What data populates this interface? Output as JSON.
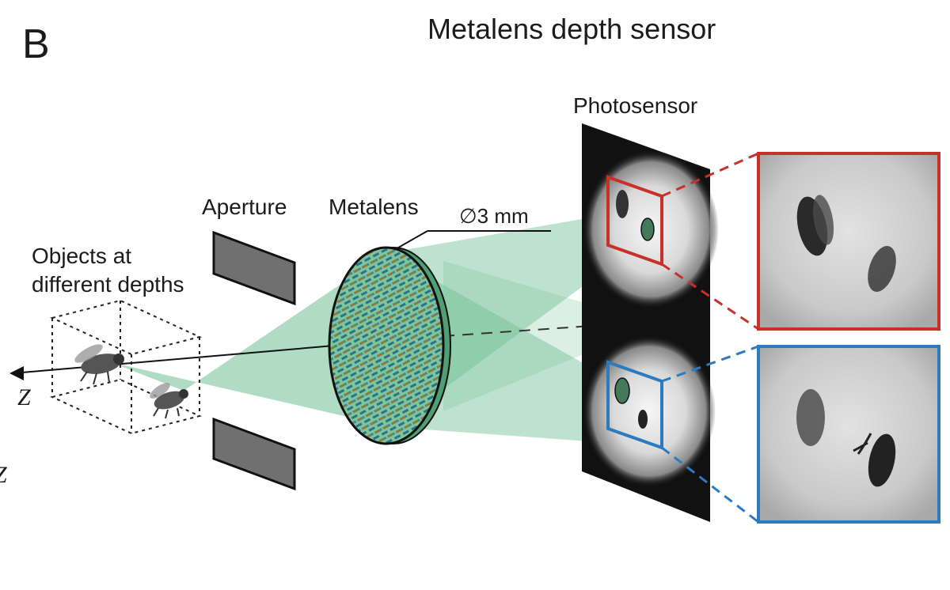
{
  "panel_letter": "B",
  "title": "Metalens depth sensor",
  "labels": {
    "photosensor": "Photosensor",
    "aperture": "Aperture",
    "metalens": "Metalens",
    "diameter": "∅3 mm",
    "objects_line1": "Objects at",
    "objects_line2": "different depths",
    "z_axis": "Z",
    "z_axis_cropped": "Z"
  },
  "colors": {
    "light_cone": "#6fbf92",
    "metalens_fill": "#7cc79a",
    "near_focus_frame": "#c8302c",
    "far_focus_frame": "#2c7ac0",
    "aperture": "#6e6e6e",
    "sensor": "#111111"
  }
}
